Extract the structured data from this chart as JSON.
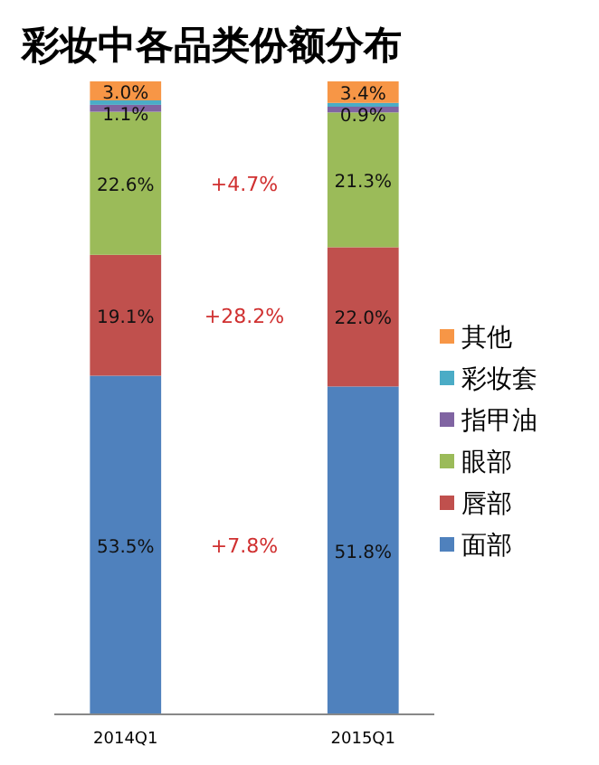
{
  "chart_data": {
    "type": "bar",
    "stacked": true,
    "title": "彩妆中各品类份额分布",
    "categories": [
      "2014Q1",
      "2015Q1"
    ],
    "legend": "right",
    "series": [
      {
        "name": "面部",
        "color": "#4f81bd",
        "values": [
          53.5,
          51.8
        ],
        "value_labels": [
          "53.5%",
          "51.8%"
        ]
      },
      {
        "name": "唇部",
        "color": "#c0504d",
        "values": [
          19.1,
          22.0
        ],
        "value_labels": [
          "19.1%",
          "22.0%"
        ]
      },
      {
        "name": "眼部",
        "color": "#9bbb59",
        "values": [
          22.6,
          21.3
        ],
        "value_labels": [
          "22.6%",
          "21.3%"
        ]
      },
      {
        "name": "指甲油",
        "color": "#8064a2",
        "values": [
          1.1,
          0.9
        ],
        "value_labels": [
          "1.1%",
          "0.9%"
        ]
      },
      {
        "name": "彩妆套",
        "color": "#4bacc6",
        "values": [
          0.7,
          0.6
        ],
        "value_labels": [
          null,
          null
        ]
      },
      {
        "name": "其他",
        "color": "#f79646",
        "values": [
          3.0,
          3.4
        ],
        "value_labels": [
          "3.0%",
          "3.4%"
        ]
      }
    ],
    "annotations": [
      "+4.7%",
      "+28.2%",
      "+7.8%"
    ]
  }
}
